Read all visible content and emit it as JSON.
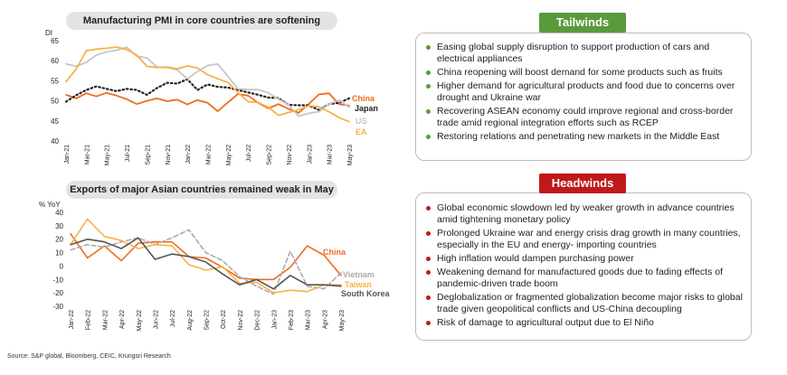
{
  "source": "Source: S&P global, Bloomberg, CEIC, Krungsri Research",
  "chart_data": [
    {
      "type": "line",
      "title": "Manufacturing PMI in core countries are softening",
      "ylabel": "DI",
      "ylim": [
        40,
        65
      ],
      "yticks": [
        40,
        45,
        50,
        55,
        60,
        65
      ],
      "grid": false,
      "x": [
        "Jan-21",
        "Feb-21",
        "Mar-21",
        "Apr-21",
        "May-21",
        "Jun-21",
        "Jul-21",
        "Aug-21",
        "Sep-21",
        "Oct-21",
        "Nov-21",
        "Dec-21",
        "Jan-22",
        "Feb-22",
        "Mar-22",
        "Apr-22",
        "May-22",
        "Jun-22",
        "Jul-22",
        "Aug-22",
        "Sep-22",
        "Oct-22",
        "Nov-22",
        "Dec-22",
        "Jan-23",
        "Feb-23",
        "Mar-23",
        "Apr-23",
        "May-23"
      ],
      "x_tick_labels": [
        "Jan-21",
        "Mar-21",
        "May-21",
        "Jul-21",
        "Sep-21",
        "Nov-21",
        "Jan-22",
        "Mar-22",
        "May-22",
        "Jul-22",
        "Sep-22",
        "Nov-22",
        "Jan-23",
        "Mar-23",
        "May-23"
      ],
      "series": [
        {
          "name": "China",
          "color": "#ef6c1e",
          "style": "solid",
          "values": [
            51.5,
            50.6,
            51.9,
            51.1,
            52.0,
            51.3,
            50.4,
            49.2,
            50.0,
            50.6,
            49.9,
            50.3,
            49.1,
            50.2,
            49.5,
            47.4,
            49.6,
            51.7,
            51.3,
            49.5,
            48.1,
            49.2,
            48.0,
            47.0,
            49.2,
            51.6,
            51.9,
            49.2,
            48.8
          ]
        },
        {
          "name": "Japan",
          "color": "#222222",
          "style": "dotted",
          "values": [
            49.8,
            51.4,
            52.7,
            53.6,
            53.0,
            52.4,
            53.0,
            52.7,
            51.5,
            53.2,
            54.5,
            54.3,
            55.4,
            52.7,
            54.1,
            53.5,
            53.3,
            52.7,
            52.1,
            51.5,
            50.8,
            50.7,
            49.0,
            48.9,
            48.9,
            47.7,
            49.2,
            49.5,
            50.6
          ]
        },
        {
          "name": "US",
          "color": "#c6c6c6",
          "style": "solid",
          "values": [
            59.2,
            58.6,
            59.6,
            61.4,
            62.2,
            62.6,
            63.4,
            61.1,
            60.7,
            58.4,
            58.3,
            57.7,
            55.5,
            57.3,
            58.8,
            59.2,
            56.1,
            53.0,
            52.8,
            52.8,
            52.0,
            50.4,
            49.0,
            46.2,
            46.9,
            47.3,
            49.2,
            50.2,
            48.4
          ]
        },
        {
          "name": "EA",
          "color": "#f8b148",
          "style": "solid",
          "values": [
            54.8,
            57.9,
            62.5,
            62.9,
            63.1,
            63.4,
            62.8,
            61.4,
            58.6,
            58.3,
            58.4,
            58.0,
            58.7,
            58.2,
            56.5,
            55.5,
            54.6,
            52.1,
            49.8,
            49.6,
            48.4,
            46.4,
            47.1,
            47.8,
            48.8,
            48.5,
            47.3,
            45.8,
            44.8
          ]
        }
      ]
    },
    {
      "type": "line",
      "title": "Exports of major Asian countries remained weak in May",
      "ylabel": "% YoY",
      "ylim": [
        -30,
        40
      ],
      "yticks": [
        -30,
        -20,
        -10,
        0,
        10,
        20,
        30,
        40
      ],
      "grid": false,
      "x": [
        "Jan-22",
        "Feb-22",
        "Mar-22",
        "Apr-22",
        "May-22",
        "Jun-22",
        "Jul-22",
        "Aug-22",
        "Sep-22",
        "Oct-22",
        "Nov-22",
        "Dec-22",
        "Jan-23",
        "Feb-23",
        "Mar-23",
        "Apr-23",
        "May-23"
      ],
      "series": [
        {
          "name": "China",
          "color": "#ef6c1e",
          "style": "solid",
          "values": [
            24,
            6,
            15,
            4,
            17,
            18,
            18,
            7,
            6,
            -1,
            -9,
            -10,
            -10,
            -1,
            15,
            8,
            -7
          ]
        },
        {
          "name": "Vietnam",
          "color": "#b0a8a8",
          "style": "dashed",
          "values": [
            12,
            16,
            14,
            18,
            21,
            16,
            21,
            27,
            10,
            4,
            -8,
            -15,
            -21,
            11,
            -15,
            -17,
            -5
          ]
        },
        {
          "name": "Taiwan",
          "color": "#f8b148",
          "style": "solid",
          "values": [
            16,
            35,
            22,
            19,
            13,
            16,
            15,
            1,
            -3,
            -0.5,
            -13,
            -12,
            -20,
            -18,
            -19,
            -14,
            -14
          ]
        },
        {
          "name": "South Korea",
          "color": "#555555",
          "style": "solid",
          "values": [
            16,
            20,
            18,
            13,
            21,
            5,
            9,
            7,
            3,
            -6,
            -14,
            -10,
            -17,
            -7,
            -14,
            -14,
            -15
          ]
        }
      ]
    }
  ],
  "tailwinds": {
    "title": "Tailwinds",
    "color": "#5a9a3c",
    "items": [
      "Easing global supply disruption to support production of cars and electrical appliances",
      "China reopening will boost demand for some products such as fruits",
      "Higher demand for agricultural products and food due to concerns over drought and Ukraine war",
      "Recovering ASEAN economy could improve regional and cross-border trade amid regional integration efforts such as RCEP",
      "Restoring relations and penetrating new markets in the Middle East"
    ]
  },
  "headwinds": {
    "title": "Headwinds",
    "color": "#c0191b",
    "items": [
      "Global economic slowdown led by weaker growth in advance countries amid tightening monetary policy",
      "Prolonged Ukraine war and energy crisis drag growth in many countries, especially in the EU and energy- importing countries",
      "High inflation would dampen purchasing power",
      "Weakening demand for manufactured goods due to fading effects of pandemic-driven trade boom",
      "Deglobalization or fragmented globalization become major risks to global trade given geopolitical conflicts and US-China decoupling",
      "Risk of damage to agricultural output due to El Niño"
    ]
  }
}
